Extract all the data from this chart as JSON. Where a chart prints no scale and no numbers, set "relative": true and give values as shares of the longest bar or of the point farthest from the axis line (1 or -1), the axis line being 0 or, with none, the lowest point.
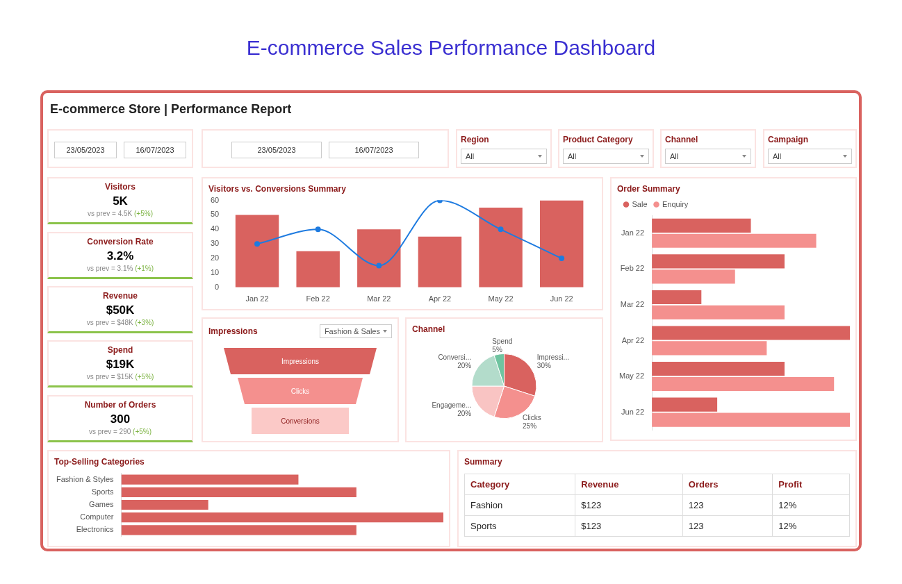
{
  "chart_data": [
    {
      "type": "other",
      "title": "E-commerce Sales Performance Dashboard",
      "subtitle": "E-commerce Store | Performance Report"
    },
    {
      "type": "other",
      "annotations": [
        "23/05/2023",
        "16/07/2023"
      ]
    },
    {
      "type": "other",
      "annotations": [
        "23/05/2023",
        "16/07/2023"
      ]
    },
    {
      "type": "other",
      "title": "Region",
      "annotations": [
        "All"
      ]
    },
    {
      "type": "other",
      "title": "Product Category",
      "annotations": [
        "All"
      ]
    },
    {
      "type": "other",
      "title": "Channel",
      "annotations": [
        "All"
      ]
    },
    {
      "type": "other",
      "title": "Campaign",
      "annotations": [
        "All"
      ]
    },
    {
      "type": "other",
      "title": "Visitors",
      "annotations": [
        "5K",
        "vs prev = 4.5K",
        "(+5%)"
      ]
    },
    {
      "type": "bar",
      "title": "Visitors vs. Conversions Summary",
      "categories": [
        "Jan 22",
        "Feb 22",
        "Mar 22",
        "Apr 22",
        "May 22",
        "Jun 22"
      ],
      "ylim": [
        0,
        60
      ],
      "yticks": [
        0,
        10,
        20,
        30,
        40,
        50,
        60
      ],
      "marker": "circle",
      "series": [
        {
          "type": "bar",
          "color": "#d9625f",
          "values": [
            50,
            25,
            40,
            35,
            55,
            60
          ]
        },
        {
          "type": "line",
          "color": "#1e7be0",
          "values": [
            30,
            40,
            15,
            60,
            40,
            20
          ]
        }
      ]
    },
    {
      "type": "bar",
      "title": "Order Summary",
      "orientation": "horizontal",
      "relative": true,
      "legend": "top left",
      "categories": [
        "Jan 22",
        "Feb 22",
        "Mar 22",
        "Apr 22",
        "May 22",
        "Jun 22"
      ],
      "series": [
        {
          "name": "Sale",
          "color": "#d9625f",
          "values": [
            0.5,
            0.67,
            0.25,
            1,
            0.67,
            0.33
          ]
        },
        {
          "name": "Enquiry",
          "color": "#f4908e",
          "values": [
            0.83,
            0.42,
            0.67,
            0.58,
            0.92,
            1
          ]
        }
      ]
    },
    {
      "type": "other",
      "title": "Conversion Rate",
      "annotations": [
        "3.2%",
        "vs prev = 3.1%",
        "(+1%)"
      ]
    },
    {
      "type": "other",
      "title": "Revenue",
      "annotations": [
        "$50K",
        "vs prev = $48K",
        "(+3%)"
      ]
    },
    {
      "type": "other",
      "title": "Spend",
      "annotations": [
        "$19K",
        "vs prev = $15K",
        "(+5%)"
      ]
    },
    {
      "type": "other",
      "title": "Number of Orders",
      "annotations": [
        "300",
        "vs prev = 290",
        "(+5%)"
      ]
    },
    {
      "type": "other",
      "title": "Impressions",
      "annotations": [
        "Fashion & Sales"
      ],
      "categories": [
        "Impressions",
        "Clicks",
        "Conversions"
      ],
      "colors": [
        "#d9625f",
        "#f4908e",
        "#fbc9c7"
      ]
    },
    {
      "type": "pie",
      "title": "Channel",
      "categories": [
        "Impressi...",
        "Clicks",
        "Engageme...",
        "Conversi...",
        "Spend"
      ],
      "values": [
        30,
        25,
        20,
        20,
        5
      ],
      "value_labels": [
        "30%",
        "25%",
        "20%",
        "20%",
        "5%"
      ],
      "colors": [
        "#d9625f",
        "#f4908e",
        "#f9c4c3",
        "#b3dccb",
        "#6fc4a0"
      ]
    },
    {
      "type": "bar",
      "title": "Top-Selling Categories",
      "orientation": "horizontal",
      "relative": true,
      "categories": [
        "Fashion & Styles",
        "Sports",
        "Games",
        "Computer",
        "Electronics"
      ],
      "series": [
        {
          "color": "#d9625f",
          "values": [
            0.55,
            0.73,
            0.27,
            1,
            0.73
          ]
        }
      ]
    },
    {
      "type": "other",
      "title": "Summary",
      "categories": [
        "Category",
        "Revenue",
        "Orders",
        "Profit"
      ],
      "cell_labels": [
        [
          "Fashion",
          "$123",
          "123",
          "12%"
        ],
        [
          "Sports",
          "$123",
          "123",
          "12%"
        ]
      ]
    }
  ]
}
